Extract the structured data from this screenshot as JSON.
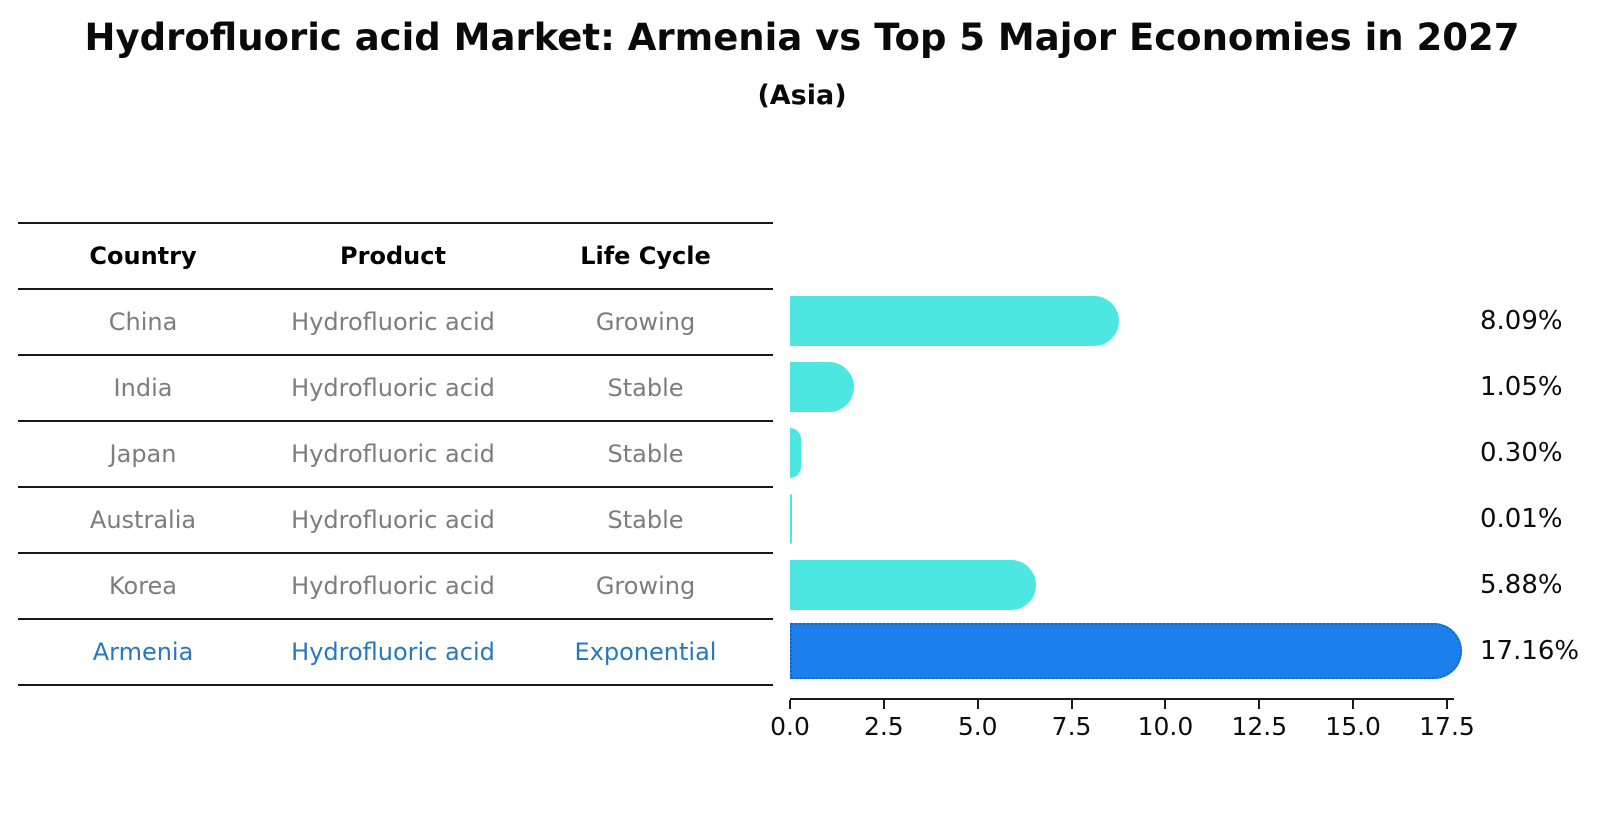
{
  "title": "Hydrofluoric acid Market: Armenia vs Top 5 Major Economies in 2027",
  "subtitle": "(Asia)",
  "table": {
    "headers": [
      "Country",
      "Product",
      "Life Cycle"
    ],
    "rows": [
      {
        "country": "China",
        "product": "Hydrofluoric acid",
        "life_cycle": "Growing",
        "highlight": false
      },
      {
        "country": "India",
        "product": "Hydrofluoric acid",
        "life_cycle": "Stable",
        "highlight": false
      },
      {
        "country": "Japan",
        "product": "Hydrofluoric acid",
        "life_cycle": "Stable",
        "highlight": false
      },
      {
        "country": "Australia",
        "product": "Hydrofluoric acid",
        "life_cycle": "Stable",
        "highlight": false
      },
      {
        "country": "Korea",
        "product": "Hydrofluoric acid",
        "life_cycle": "Growing",
        "highlight": false
      },
      {
        "country": "Armenia",
        "product": "Hydrofluoric acid",
        "life_cycle": "Exponential",
        "highlight": true
      }
    ]
  },
  "chart_data": {
    "type": "bar",
    "orientation": "horizontal",
    "title": "Hydrofluoric acid Market: Armenia vs Top 5 Major Economies in 2027 (Asia)",
    "categories": [
      "China",
      "India",
      "Japan",
      "Australia",
      "Korea",
      "Armenia"
    ],
    "values": [
      8.09,
      1.05,
      0.3,
      0.01,
      5.88,
      17.16
    ],
    "value_labels": [
      "8.09%",
      "1.05%",
      "0.30%",
      "0.01%",
      "5.88%",
      "17.16%"
    ],
    "highlight_index": 5,
    "xlim": [
      0,
      17.5
    ],
    "x_ticks": [
      0.0,
      2.5,
      5.0,
      7.5,
      10.0,
      12.5,
      15.0,
      17.5
    ],
    "x_tick_labels": [
      "0.0",
      "2.5",
      "5.0",
      "7.5",
      "10.0",
      "12.5",
      "15.0",
      "17.5"
    ],
    "grid": false,
    "legend": false
  },
  "colors": {
    "bar": "#4DE7E2",
    "highlight_bar": "#1B80EC",
    "highlight_bar_border": "#1464C8",
    "row_text": "#7D7D7D",
    "highlight_text": "#2878BE",
    "header_text": "#000000",
    "axis": "#1A1A1A"
  }
}
